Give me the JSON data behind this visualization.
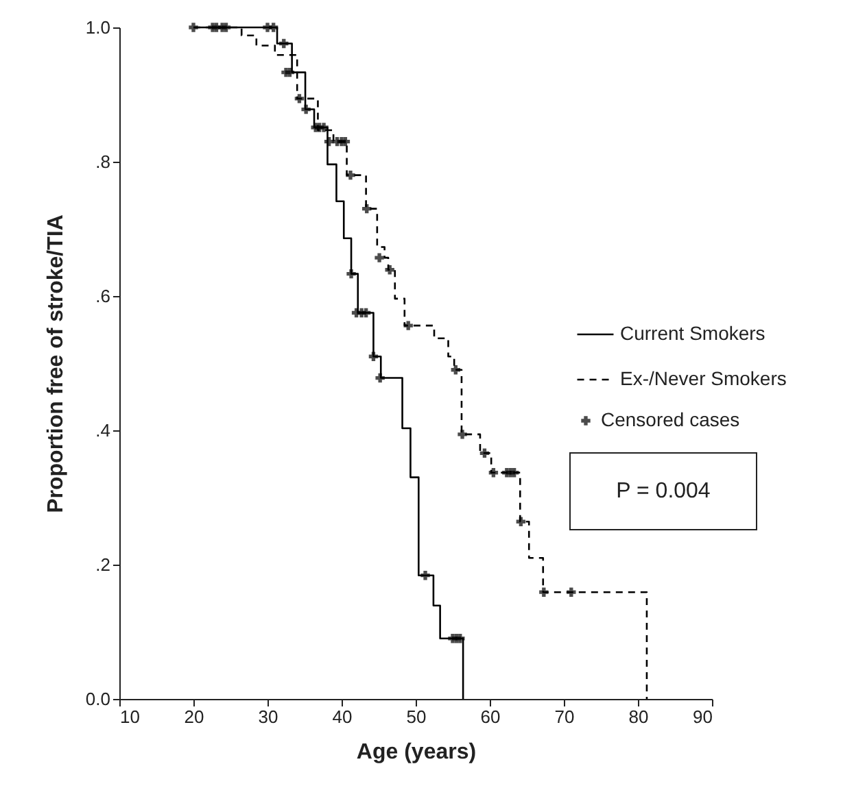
{
  "chart_data": {
    "type": "step",
    "xlabel": "Age (years)",
    "ylabel": "Proportion free of stroke/TIA",
    "xlim": [
      10,
      90
    ],
    "xticks": [
      10,
      20,
      30,
      40,
      50,
      60,
      70,
      80,
      90
    ],
    "ylim": [
      0,
      1
    ],
    "yticks": [
      {
        "value": 0,
        "label": "0.0"
      },
      {
        "value": 0.2,
        "label": ".2"
      },
      {
        "value": 0.4,
        "label": ".4"
      },
      {
        "value": 0.6,
        "label": ".6"
      },
      {
        "value": 0.8,
        "label": ".8"
      },
      {
        "value": 1,
        "label": "1.0"
      }
    ],
    "grid": false,
    "legend": "right",
    "annotations": [
      "P = 0.004"
    ],
    "series": [
      {
        "name": "Current Smokers",
        "color": "#000000",
        "line_style": "solid",
        "x": [
          20,
          31.3,
          33.3,
          35.1,
          36.3,
          38.1,
          39.3,
          40.3,
          41.3,
          42.2,
          44.3,
          45.3,
          48.2,
          49.3,
          50.4,
          52.4,
          53.3,
          56.4
        ],
        "values": [
          1,
          0.976,
          0.933,
          0.878,
          0.851,
          0.796,
          0.741,
          0.686,
          0.633,
          0.575,
          0.51,
          0.478,
          0.403,
          0.33,
          0.184,
          0.139,
          0.09,
          0
        ]
      },
      {
        "name": "Ex-/Never Smokers",
        "color": "#000000",
        "line_style": "dashed",
        "x": [
          20,
          26.5,
          28.5,
          31,
          34,
          36.8,
          38.9,
          40.7,
          43.3,
          44.8,
          45.8,
          46.3,
          47.2,
          48.5,
          52.5,
          54.4,
          55.2,
          56.2,
          58.7,
          60.2,
          64.1,
          65.3,
          67.2,
          81.2
        ],
        "values": [
          1,
          0.988,
          0.973,
          0.959,
          0.894,
          0.847,
          0.83,
          0.78,
          0.73,
          0.673,
          0.657,
          0.639,
          0.596,
          0.556,
          0.537,
          0.51,
          0.49,
          0.394,
          0.366,
          0.337,
          0.264,
          0.21,
          0.159,
          0
        ]
      },
      {
        "name": "Censored cases",
        "type": "scatter",
        "marker": "cross",
        "color": "#000000",
        "x": [
          20,
          22.6,
          23.1,
          23.9,
          24.4,
          30,
          30.8,
          32.2,
          32.5,
          33,
          34.3,
          35.2,
          36.5,
          37,
          37.6,
          38.3,
          39.4,
          40,
          40.5,
          41.2,
          43.4,
          41.3,
          42,
          42.7,
          43.3,
          44.3,
          45.2,
          45.1,
          46.5,
          49,
          55.4,
          56.3,
          59.3,
          60.5,
          62.3,
          62.8,
          63.3,
          64.2,
          67.3,
          71,
          51.3,
          55,
          55.5,
          56
        ],
        "values": [
          1,
          1,
          1,
          1,
          1,
          1,
          1,
          0.976,
          0.933,
          0.933,
          0.894,
          0.878,
          0.851,
          0.851,
          0.851,
          0.83,
          0.83,
          0.83,
          0.83,
          0.78,
          0.73,
          0.633,
          0.575,
          0.575,
          0.575,
          0.51,
          0.478,
          0.657,
          0.639,
          0.556,
          0.49,
          0.394,
          0.366,
          0.337,
          0.337,
          0.337,
          0.337,
          0.264,
          0.159,
          0.159,
          0.184,
          0.09,
          0.09,
          0.09
        ]
      }
    ]
  }
}
